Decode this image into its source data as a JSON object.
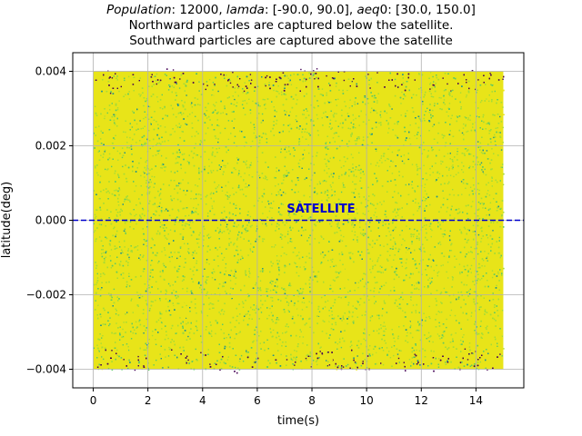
{
  "title": {
    "line1": {
      "pop_label": "Population",
      "pop_value": ": 12000, ",
      "lamda_label": "lamda",
      "lamda_value": ": [-90.0, 90.0], ",
      "aeq_label": "aeq",
      "aeq_value": "0: [30.0, 150.0]"
    },
    "line2": "Northward particles are captured below the satellite.",
    "line3": "Southward particles are captured above the satellite"
  },
  "colors": {
    "dense": "#e8e419",
    "mid": "#a5db36",
    "green": "#5ec962",
    "teal": "#21918c",
    "edge": "#440154",
    "satellite_line": "#0000cd",
    "grid": "#b0b0b0"
  },
  "chart_data": {
    "type": "scatter",
    "xlabel": "time(s)",
    "ylabel": "latitude(deg)",
    "xlim": [
      -0.75,
      15.75
    ],
    "ylim": [
      -0.0045,
      0.0045
    ],
    "xticks": [
      0,
      2,
      4,
      6,
      8,
      10,
      12,
      14
    ],
    "xtick_labels": [
      "0",
      "2",
      "4",
      "6",
      "8",
      "10",
      "12",
      "14"
    ],
    "yticks": [
      -0.004,
      -0.002,
      0.0,
      0.002,
      0.004
    ],
    "ytick_labels": [
      "−0.004",
      "−0.002",
      "0.000",
      "0.002",
      "0.004"
    ],
    "grid": true,
    "population": 12000,
    "x_range": [
      0,
      15
    ],
    "y_range": [
      -0.004,
      0.004
    ],
    "satellite_y": 0.0,
    "satellite_label": "SATELLITE",
    "satellite_label_x": 7.5,
    "satellite_label_y": 0.0003
  }
}
